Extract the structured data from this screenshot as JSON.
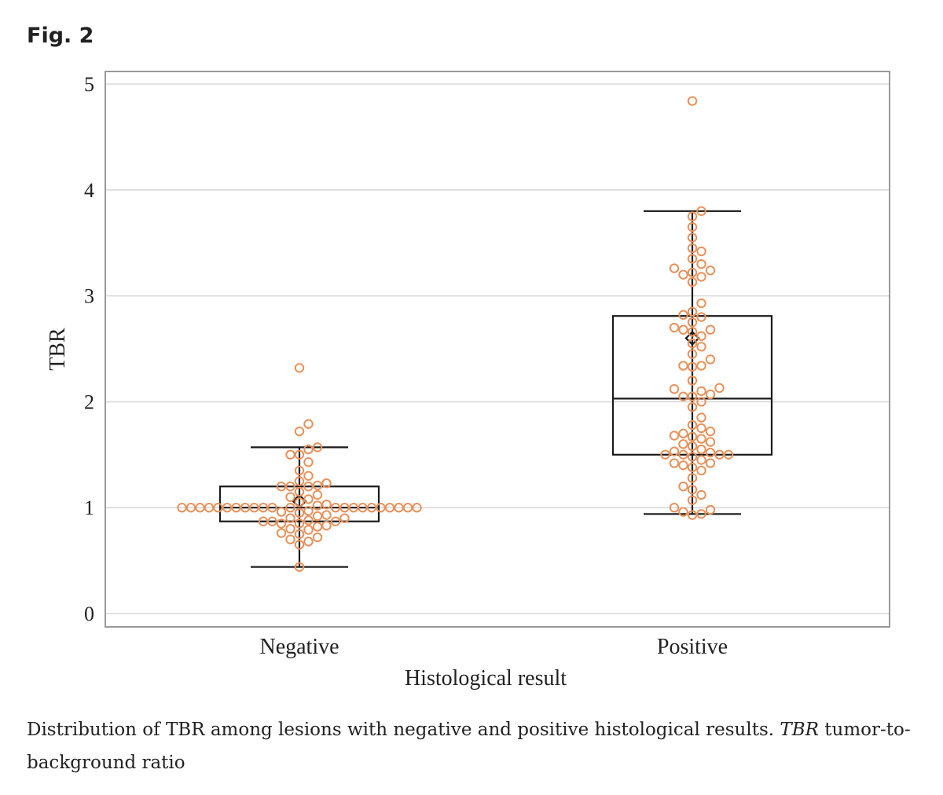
{
  "figure": {
    "label": "Fig. 2",
    "caption_main": "Distribution of TBR among lesions with negative and positive histological results.",
    "caption_abbr": "TBR",
    "caption_def": "tumor-to-background ratio"
  },
  "chart_data": {
    "type": "box",
    "xlabel": "Histological result",
    "ylabel": "TBR",
    "ylim": [
      0,
      5
    ],
    "yticks": [
      0,
      1,
      2,
      3,
      4,
      5
    ],
    "grid": true,
    "categories": [
      "Negative",
      "Positive"
    ],
    "point_color": "#e8915a",
    "box_color": "#1a1a1a",
    "grid_color": "#d9d9d9",
    "frame_color": "#999999",
    "boxes": [
      {
        "name": "Negative",
        "whisker_low": 0.44,
        "q1": 0.87,
        "median": 1.0,
        "q3": 1.2,
        "whisker_high": 1.57,
        "mean": 1.06,
        "points": [
          2.32,
          1.79,
          1.72,
          1.57,
          1.55,
          1.5,
          1.5,
          1.43,
          1.35,
          1.3,
          1.25,
          1.23,
          1.21,
          1.2,
          1.2,
          1.2,
          1.15,
          1.12,
          1.1,
          1.08,
          1.05,
          1.03,
          1.02,
          1.0,
          1.0,
          1.0,
          1.0,
          1.0,
          1.0,
          1.0,
          1.0,
          1.0,
          1.0,
          1.0,
          1.0,
          1.0,
          1.0,
          1.0,
          1.0,
          1.0,
          1.0,
          1.0,
          1.0,
          1.0,
          1.0,
          0.97,
          0.96,
          0.95,
          0.93,
          0.92,
          0.9,
          0.9,
          0.88,
          0.87,
          0.87,
          0.87,
          0.85,
          0.85,
          0.83,
          0.82,
          0.8,
          0.79,
          0.76,
          0.75,
          0.72,
          0.7,
          0.68,
          0.65,
          0.44
        ]
      },
      {
        "name": "Positive",
        "whisker_low": 0.94,
        "q1": 1.5,
        "median": 2.03,
        "q3": 2.81,
        "whisker_high": 3.8,
        "mean": 2.6,
        "points": [
          4.84,
          3.8,
          3.75,
          3.65,
          3.55,
          3.45,
          3.42,
          3.35,
          3.3,
          3.26,
          3.24,
          3.22,
          3.2,
          3.18,
          3.13,
          2.93,
          2.85,
          2.82,
          2.8,
          2.75,
          2.7,
          2.68,
          2.68,
          2.66,
          2.62,
          2.55,
          2.52,
          2.45,
          2.4,
          2.34,
          2.34,
          2.33,
          2.2,
          2.13,
          2.12,
          2.1,
          2.07,
          2.05,
          2.05,
          2.0,
          1.95,
          1.85,
          1.78,
          1.75,
          1.72,
          1.7,
          1.68,
          1.67,
          1.65,
          1.62,
          1.6,
          1.58,
          1.55,
          1.53,
          1.52,
          1.5,
          1.5,
          1.5,
          1.5,
          1.48,
          1.45,
          1.42,
          1.42,
          1.4,
          1.38,
          1.35,
          1.28,
          1.2,
          1.17,
          1.12,
          1.07,
          1.0,
          0.98,
          0.96,
          0.94,
          0.93
        ]
      }
    ]
  }
}
